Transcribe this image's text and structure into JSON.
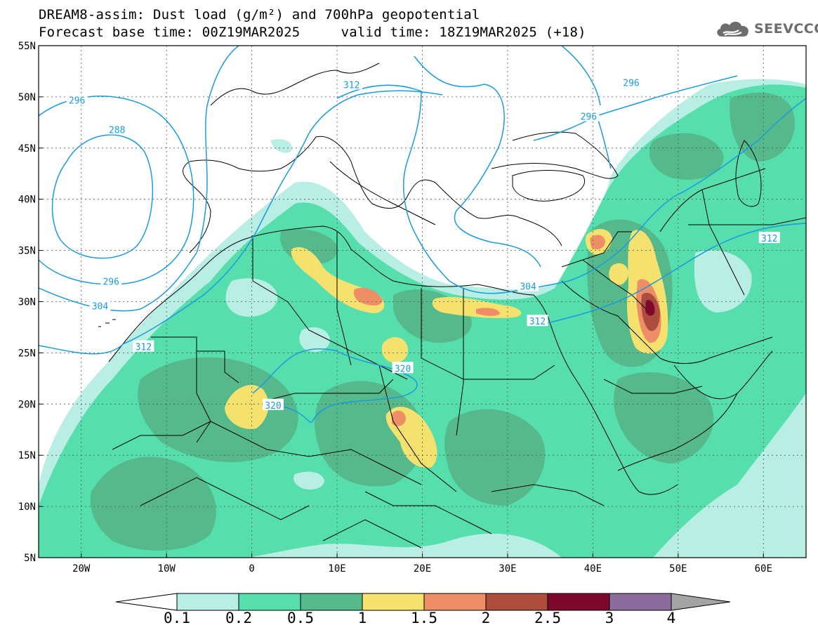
{
  "header": {
    "title_line1": "DREAM8-assim: Dust load (g/m²) and 700hPa geopotential",
    "title_line2": "Forecast base time: 00Z19MAR2025     valid time: 18Z19MAR2025 (+18)",
    "logo_text": "SEEVCCC"
  },
  "map": {
    "lon_range": [
      -25,
      65
    ],
    "lat_range": [
      5,
      55
    ],
    "lon_ticks": [
      {
        "value": -20,
        "label": "20W"
      },
      {
        "value": -10,
        "label": "10W"
      },
      {
        "value": 0,
        "label": "0"
      },
      {
        "value": 10,
        "label": "10E"
      },
      {
        "value": 20,
        "label": "20E"
      },
      {
        "value": 30,
        "label": "30E"
      },
      {
        "value": 40,
        "label": "40E"
      },
      {
        "value": 50,
        "label": "50E"
      },
      {
        "value": 60,
        "label": "60E"
      }
    ],
    "lat_ticks": [
      {
        "value": 5,
        "label": "5N"
      },
      {
        "value": 10,
        "label": "10N"
      },
      {
        "value": 15,
        "label": "15N"
      },
      {
        "value": 20,
        "label": "20N"
      },
      {
        "value": 25,
        "label": "25N"
      },
      {
        "value": 30,
        "label": "30N"
      },
      {
        "value": 35,
        "label": "35N"
      },
      {
        "value": 40,
        "label": "40N"
      },
      {
        "value": 45,
        "label": "45N"
      },
      {
        "value": 50,
        "label": "50N"
      },
      {
        "value": 55,
        "label": "55N"
      }
    ],
    "contour_labels": [
      {
        "text": "296",
        "lon": -20.5,
        "lat": 49.7
      },
      {
        "text": "288",
        "lon": -15.8,
        "lat": 46.8
      },
      {
        "text": "296",
        "lon": -16.5,
        "lat": 32.0
      },
      {
        "text": "304",
        "lon": -17.8,
        "lat": 29.6
      },
      {
        "text": "312",
        "lon": -12.7,
        "lat": 25.6
      },
      {
        "text": "312",
        "lon": 11.7,
        "lat": 51.2
      },
      {
        "text": "296",
        "lon": 44.5,
        "lat": 51.4
      },
      {
        "text": "296",
        "lon": 39.5,
        "lat": 48.1
      },
      {
        "text": "312",
        "lon": 60.7,
        "lat": 36.2
      },
      {
        "text": "304",
        "lon": 32.4,
        "lat": 31.5
      },
      {
        "text": "312",
        "lon": 33.5,
        "lat": 28.1
      },
      {
        "text": "320",
        "lon": 17.7,
        "lat": 23.5
      },
      {
        "text": "320",
        "lon": 2.5,
        "lat": 19.9
      }
    ],
    "colors": {
      "contour": "#1a9be0",
      "border": "#000000"
    }
  },
  "colorbar": {
    "levels": [
      "0.1",
      "0.2",
      "0.5",
      "1",
      "1.5",
      "2",
      "2.5",
      "3",
      "4"
    ],
    "colors": [
      "#ffffff",
      "#b8eee3",
      "#56dfad",
      "#55b98c",
      "#f5e26e",
      "#ee8e66",
      "#ad4d3d",
      "#7d0a2d",
      "#8c6c9c",
      "#a4a4a4"
    ]
  }
}
